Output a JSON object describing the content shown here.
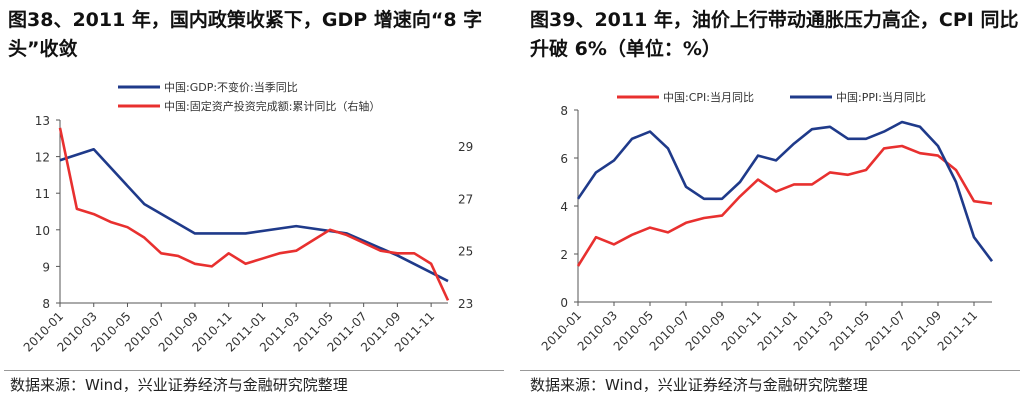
{
  "left": {
    "title": "图38、2011 年，国内政策收紧下，GDP 增速向“8 字头”收敛",
    "source": "数据来源：Wind，兴业证券经济与金融研究院整理"
  },
  "right": {
    "title": "图39、2011 年，油价上行带动通胀压力高企，CPI 同比升破 6%（单位：%）",
    "source": "数据来源：Wind，兴业证券经济与金融研究院整理"
  },
  "chart_data": [
    {
      "type": "line",
      "x_ticks": [
        "2010-01",
        "2010-03",
        "2010-05",
        "2010-07",
        "2010-09",
        "2010-11",
        "2011-01",
        "2011-03",
        "2011-05",
        "2011-07",
        "2011-09",
        "2011-11"
      ],
      "ylim": [
        8,
        13
      ],
      "y_ticks": [
        8,
        9,
        10,
        11,
        12,
        13
      ],
      "y2lim": [
        23,
        30
      ],
      "y2_ticks": [
        23,
        25,
        27,
        29
      ],
      "legend": "top",
      "series": [
        {
          "name": "中国:GDP:不变价:当季同比",
          "color": "#1f3a8a",
          "axis": "left",
          "x": [
            "2010-01",
            "2010-03",
            "2010-06",
            "2010-09",
            "2010-12",
            "2011-03",
            "2011-06",
            "2011-09",
            "2011-12"
          ],
          "values": [
            11.9,
            12.2,
            10.7,
            9.9,
            9.9,
            10.1,
            9.9,
            9.3,
            8.6
          ]
        },
        {
          "name": "中国:固定资产投资完成额:累计同比（右轴）",
          "color": "#e8302f",
          "axis": "right",
          "x": [
            "2010-01",
            "2010-02",
            "2010-03",
            "2010-04",
            "2010-05",
            "2010-06",
            "2010-07",
            "2010-08",
            "2010-09",
            "2010-10",
            "2010-11",
            "2010-12",
            "2011-01",
            "2011-02",
            "2011-03",
            "2011-04",
            "2011-05",
            "2011-06",
            "2011-07",
            "2011-08",
            "2011-09",
            "2011-10",
            "2011-11",
            "2011-12"
          ],
          "values": [
            29.7,
            26.6,
            26.4,
            26.1,
            25.9,
            25.5,
            24.9,
            24.8,
            24.5,
            24.4,
            24.9,
            24.5,
            24.7,
            24.9,
            25.0,
            25.4,
            25.8,
            25.6,
            25.3,
            25.0,
            24.9,
            24.9,
            24.5,
            23.1
          ]
        }
      ]
    },
    {
      "type": "line",
      "x_ticks": [
        "2010-01",
        "2010-03",
        "2010-05",
        "2010-07",
        "2010-09",
        "2010-11",
        "2011-01",
        "2011-03",
        "2011-05",
        "2011-07",
        "2011-09",
        "2011-11"
      ],
      "ylim": [
        0,
        8
      ],
      "y_ticks": [
        0,
        2,
        4,
        6,
        8
      ],
      "legend": "top",
      "series": [
        {
          "name": "中国:CPI:当月同比",
          "color": "#e8302f",
          "values": [
            1.5,
            2.7,
            2.4,
            2.8,
            3.1,
            2.9,
            3.3,
            3.5,
            3.6,
            4.4,
            5.1,
            4.6,
            4.9,
            4.9,
            5.4,
            5.3,
            5.5,
            6.4,
            6.5,
            6.2,
            6.1,
            5.5,
            4.2,
            4.1
          ]
        },
        {
          "name": "中国:PPI:当月同比",
          "color": "#1f3a8a",
          "values": [
            4.3,
            5.4,
            5.9,
            6.8,
            7.1,
            6.4,
            4.8,
            4.3,
            4.3,
            5.0,
            6.1,
            5.9,
            6.6,
            7.2,
            7.3,
            6.8,
            6.8,
            7.1,
            7.5,
            7.3,
            6.5,
            5.0,
            2.7,
            1.7
          ]
        }
      ]
    }
  ]
}
